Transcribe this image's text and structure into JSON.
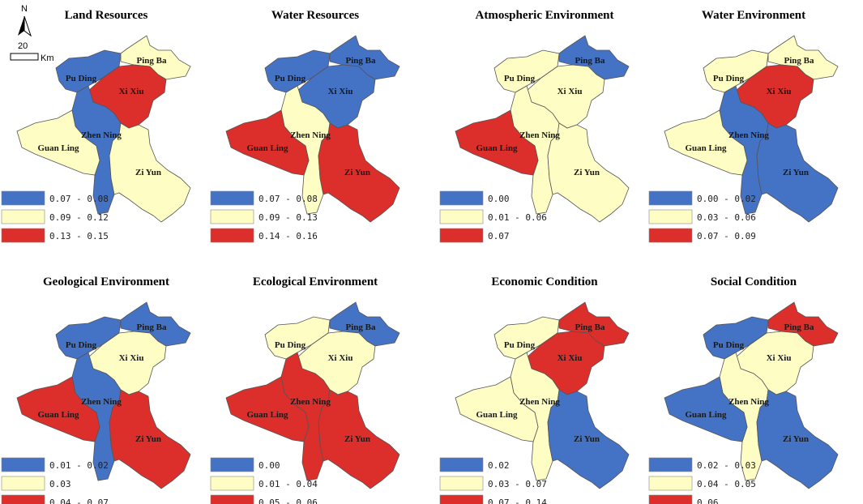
{
  "colors": {
    "low": "#4472c4",
    "mid": "#fdfdc4",
    "high": "#dc2e2a"
  },
  "north_arrow": {
    "label": "N"
  },
  "scale_bar": {
    "value": "20",
    "unit": "Km"
  },
  "panels": [
    {
      "title": "Land Resources",
      "regions": {
        "Pu Ding": "low",
        "Ping Ba": "mid",
        "Xi Xiu": "high",
        "Zhen Ning": "low",
        "Guan Ling": "mid",
        "Zi Yun": "mid"
      },
      "legend": [
        {
          "class": "low",
          "label": "0.07 - 0.08"
        },
        {
          "class": "mid",
          "label": "0.09 - 0.12"
        },
        {
          "class": "high",
          "label": "0.13 - 0.15"
        }
      ]
    },
    {
      "title": "Water Resources",
      "regions": {
        "Pu Ding": "low",
        "Ping Ba": "low",
        "Xi Xiu": "low",
        "Zhen Ning": "mid",
        "Guan Ling": "high",
        "Zi Yun": "high"
      },
      "legend": [
        {
          "class": "low",
          "label": "0.07 - 0.08"
        },
        {
          "class": "mid",
          "label": "0.09 - 0.13"
        },
        {
          "class": "high",
          "label": "0.14 - 0.16"
        }
      ]
    },
    {
      "title": "Atmospheric Environment",
      "regions": {
        "Pu Ding": "mid",
        "Ping Ba": "low",
        "Xi Xiu": "mid",
        "Zhen Ning": "mid",
        "Guan Ling": "high",
        "Zi Yun": "mid"
      },
      "legend": [
        {
          "class": "low",
          "label": "0.00"
        },
        {
          "class": "mid",
          "label": "0.01 - 0.06"
        },
        {
          "class": "high",
          "label": "0.07"
        }
      ]
    },
    {
      "title": "Water Environment",
      "regions": {
        "Pu Ding": "mid",
        "Ping Ba": "mid",
        "Xi Xiu": "high",
        "Zhen Ning": "low",
        "Guan Ling": "mid",
        "Zi Yun": "low"
      },
      "legend": [
        {
          "class": "low",
          "label": "0.00 - 0.02"
        },
        {
          "class": "mid",
          "label": "0.03 - 0.06"
        },
        {
          "class": "high",
          "label": "0.07 - 0.09"
        }
      ]
    },
    {
      "title": "Geological Environment",
      "regions": {
        "Pu Ding": "low",
        "Ping Ba": "low",
        "Xi Xiu": "mid",
        "Zhen Ning": "low",
        "Guan Ling": "high",
        "Zi Yun": "high"
      },
      "legend": [
        {
          "class": "low",
          "label": "0.01 - 0.02"
        },
        {
          "class": "mid",
          "label": "0.03"
        },
        {
          "class": "high",
          "label": "0.04 - 0.07"
        }
      ]
    },
    {
      "title": "Ecological Environment",
      "regions": {
        "Pu Ding": "mid",
        "Ping Ba": "low",
        "Xi Xiu": "mid",
        "Zhen Ning": "high",
        "Guan Ling": "high",
        "Zi Yun": "high"
      },
      "legend": [
        {
          "class": "low",
          "label": "0.00"
        },
        {
          "class": "mid",
          "label": "0.01 - 0.04"
        },
        {
          "class": "high",
          "label": "0.05 - 0.06"
        }
      ]
    },
    {
      "title": "Economic Condition",
      "regions": {
        "Pu Ding": "mid",
        "Ping Ba": "high",
        "Xi Xiu": "high",
        "Zhen Ning": "mid",
        "Guan Ling": "mid",
        "Zi Yun": "low"
      },
      "legend": [
        {
          "class": "low",
          "label": "0.02"
        },
        {
          "class": "mid",
          "label": "0.03 - 0.07"
        },
        {
          "class": "high",
          "label": "0.07 - 0.14"
        }
      ]
    },
    {
      "title": "Social Condition",
      "regions": {
        "Pu Ding": "low",
        "Ping Ba": "high",
        "Xi Xiu": "mid",
        "Zhen Ning": "mid",
        "Guan Ling": "low",
        "Zi Yun": "low"
      },
      "legend": [
        {
          "class": "low",
          "label": "0.02 - 0.03"
        },
        {
          "class": "mid",
          "label": "0.04 - 0.05"
        },
        {
          "class": "high",
          "label": "0.06"
        }
      ]
    }
  ]
}
